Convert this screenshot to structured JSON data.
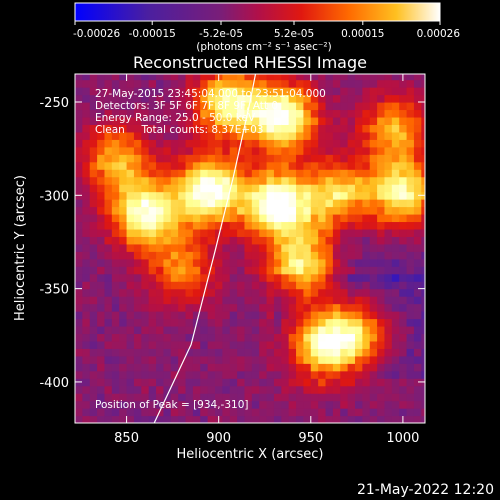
{
  "colorbar": {
    "tick_labels": [
      "-0.00026",
      "-0.00015",
      "-5.2e-05",
      "5.2e-05",
      "0.00015",
      "0.00026"
    ],
    "tick_values": [
      -0.00026,
      -0.00015,
      -5.2e-05,
      5.2e-05,
      0.00015,
      0.00026
    ],
    "range": [
      -0.00026,
      0.00026
    ],
    "units_label": "(photons cm⁻² s⁻¹ asec⁻²)"
  },
  "colors": {
    "background": "#000000",
    "colormap": [
      "#0000ff",
      "#4b1fa0",
      "#7a1e78",
      "#b0104a",
      "#e01810",
      "#ff6a00",
      "#ffc020",
      "#ffff90",
      "#ffffff"
    ]
  },
  "footer": {
    "timestamp": "21-May-2022 12:20"
  },
  "chart_data": {
    "type": "heatmap",
    "title": "Reconstructed RHESSI Image",
    "xlabel": "Heliocentric X (arcsec)",
    "ylabel": "Heliocentric Y (arcsec)",
    "xlim": [
      822,
      1012
    ],
    "ylim": [
      -422,
      -235
    ],
    "x_ticks": [
      850,
      900,
      950,
      1000
    ],
    "y_ticks": [
      -250,
      -300,
      -350,
      -400
    ],
    "grid": false,
    "annotations": [
      "27-May-2015 23:45:04.000 to 23:51:04.000",
      "Detectors: 3F 5F 6F 7F 8F 9F, Att 0",
      "Energy Range: 25.0 - 50.0 keV",
      "Clean     Total counts: 8.37E+03"
    ],
    "peak_label": "Position of Peak = [934,-310]",
    "peak": [
      934,
      -310
    ],
    "cell_size_arcsec": 4,
    "sources": [
      {
        "x": 860,
        "y": -310,
        "peak": 0.9
      },
      {
        "x": 895,
        "y": -297,
        "peak": 1.0
      },
      {
        "x": 932,
        "y": -305,
        "peak": 1.0
      },
      {
        "x": 935,
        "y": -258,
        "peak": 0.95
      },
      {
        "x": 905,
        "y": -250,
        "peak": 0.8
      },
      {
        "x": 945,
        "y": -338,
        "peak": 0.75
      },
      {
        "x": 965,
        "y": -300,
        "peak": 0.7
      },
      {
        "x": 1000,
        "y": -300,
        "peak": 0.85
      },
      {
        "x": 995,
        "y": -265,
        "peak": 0.6
      },
      {
        "x": 955,
        "y": -380,
        "peak": 0.85
      },
      {
        "x": 975,
        "y": -375,
        "peak": 0.7
      },
      {
        "x": 845,
        "y": -280,
        "peak": 0.6
      },
      {
        "x": 880,
        "y": -340,
        "peak": 0.5
      }
    ],
    "limb": [
      [
        865,
        -422
      ],
      [
        885,
        -380
      ],
      [
        898,
        -330
      ],
      [
        908,
        -290
      ],
      [
        917,
        -250
      ],
      [
        920,
        -235
      ]
    ]
  }
}
